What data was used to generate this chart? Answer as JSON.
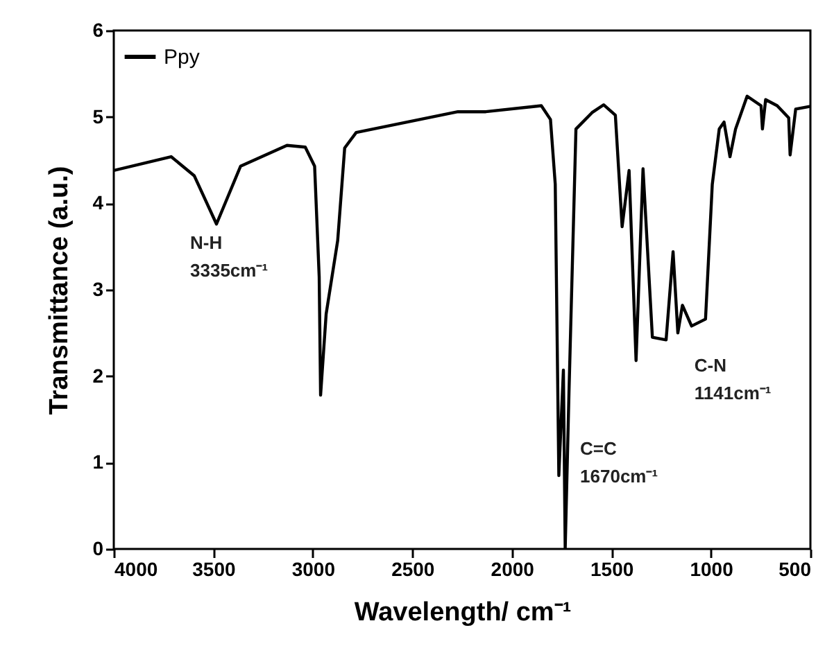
{
  "chart_data": {
    "type": "line",
    "xlabel": "Wavelength/ cm⁻¹",
    "ylabel": "Transmittance (a.u.)",
    "xlim": [
      4000,
      500
    ],
    "xticks": [
      4000,
      3500,
      3000,
      2500,
      2000,
      1500,
      1000,
      500
    ],
    "ylim": [
      0,
      6
    ],
    "yticks": [
      0,
      1,
      2,
      3,
      4,
      5,
      6
    ],
    "grid": false,
    "legend": "top left",
    "marker": "none",
    "line_style": "solid",
    "series": [
      {
        "name": "Ppy",
        "color": "#000000",
        "x": [
          4000,
          3712,
          3596,
          3484,
          3363,
          3130,
          3038,
          2991,
          2968,
          2961,
          2933,
          2875,
          2840,
          2782,
          2271,
          2131,
          1852,
          1806,
          1782,
          1764,
          1741,
          1732,
          1713,
          1678,
          1597,
          1539,
          1480,
          1446,
          1411,
          1376,
          1341,
          1294,
          1225,
          1190,
          1166,
          1143,
          1097,
          1027,
          993,
          958,
          934,
          904,
          876,
          818,
          748,
          741,
          725,
          667,
          609,
          602,
          574,
          504
        ],
        "values": [
          4.38,
          4.54,
          4.32,
          3.76,
          4.43,
          4.67,
          4.65,
          4.43,
          3.15,
          1.78,
          2.72,
          3.57,
          4.64,
          4.82,
          5.06,
          5.06,
          5.13,
          4.97,
          4.22,
          0.85,
          2.07,
          0,
          1.81,
          4.86,
          5.05,
          5.14,
          5.02,
          3.73,
          4.38,
          2.18,
          4.4,
          2.45,
          2.42,
          3.44,
          2.5,
          2.82,
          2.58,
          2.66,
          4.22,
          4.86,
          4.94,
          4.54,
          4.86,
          5.24,
          5.13,
          4.86,
          5.2,
          5.13,
          4.99,
          4.56,
          5.09,
          5.12
        ]
      }
    ],
    "annotations": [
      {
        "text": "N-H\n3335cm⁻¹",
        "x": 3484,
        "y": 3.76
      },
      {
        "text": "C=C\n1670cm⁻¹",
        "x": 1713,
        "y": 1.81
      },
      {
        "text": "C-N\n1141cm⁻¹",
        "x": 1027,
        "y": 2.66
      }
    ]
  }
}
